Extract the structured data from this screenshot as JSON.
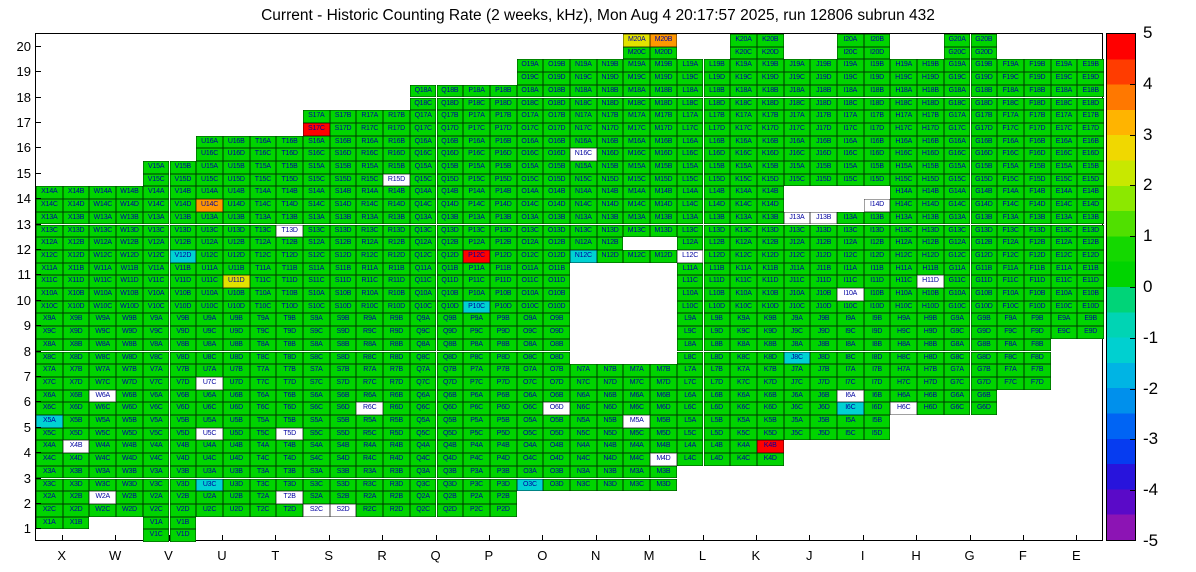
{
  "title": "Current - Historic Counting Rate (2 weeks, kHz), Mon Aug 4 20:17:57 2025, run 12806 subrun 432",
  "x_labels": [
    "X",
    "W",
    "V",
    "U",
    "T",
    "S",
    "R",
    "Q",
    "P",
    "O",
    "N",
    "M",
    "L",
    "K",
    "J",
    "I",
    "H",
    "G",
    "F",
    "E"
  ],
  "y_labels": [
    "20",
    "19",
    "18",
    "17",
    "16",
    "15",
    "14",
    "13",
    "12",
    "11",
    "10",
    "9",
    "8",
    "7",
    "6",
    "5",
    "4",
    "3",
    "2",
    "1"
  ],
  "cell_colors": {
    "g": "#00d400",
    "c": "#00d2d2",
    "y": "#e2e200",
    "o": "#ff9800",
    "r": "#ff0000",
    "w": "#ffffff"
  },
  "cell_text_color": "#0000a0",
  "colorbar": {
    "min": -5,
    "max": 5,
    "ticks": [
      "5",
      "4",
      "3",
      "2",
      "1",
      "0",
      "-1",
      "-2",
      "-3",
      "-4",
      "-5"
    ],
    "palette_top_to_bottom": [
      "#ff0000",
      "#ff3c00",
      "#ff7800",
      "#ffb400",
      "#f0d800",
      "#c8e800",
      "#8ce800",
      "#50e000",
      "#14d800",
      "#00d400",
      "#00d478",
      "#00d4b4",
      "#00d0d0",
      "#00b4e4",
      "#0090ec",
      "#0064f4",
      "#063cf0",
      "#2814dc",
      "#5a0ac8",
      "#8c14b4"
    ]
  },
  "chart_data": {
    "type": "heatmap",
    "title": "Current - Historic Counting Rate (2 weeks, kHz), Mon Aug 4 20:17:57 2025, run 12806 subrun 432",
    "x_categories": [
      "X",
      "W",
      "V",
      "U",
      "T",
      "S",
      "R",
      "Q",
      "P",
      "O",
      "N",
      "M",
      "L",
      "K",
      "J",
      "I",
      "H",
      "G",
      "F",
      "E"
    ],
    "y_range": [
      1,
      20
    ],
    "value_range": [
      -5,
      5
    ],
    "legend_position": "right-colorbar",
    "sub_cells": [
      "A",
      "B",
      "C",
      "D"
    ],
    "code_meaning": {
      "g": "green, approx +0.5",
      "c": "cyan, approx -1.5",
      "y": "yellow, approx +2.5",
      "o": "orange, approx +3.5",
      "r": "red, approx +5",
      "w": "white cell with label (no rate / minimum)",
      ".": "channel absent"
    },
    "rows": [
      {
        "y": 20,
        "cols": {
          "M": "yogg",
          "K": "gggg",
          "I": "gggg",
          "G": "gggg"
        }
      },
      {
        "y": 19,
        "cols": {
          "O": "gggg",
          "N": "gggg",
          "M": "gggg",
          "L": "gggg",
          "K": "gggg",
          "J": "gggg",
          "I": "gggg",
          "H": "gggg",
          "G": "gggg",
          "F": "gggg",
          "E": "gggg"
        }
      },
      {
        "y": 18,
        "cols": {
          "Q": "gggg",
          "P": "gggg",
          "O": "gggg",
          "N": "gggg",
          "M": "gggg",
          "L": "gggg",
          "K": "gggg",
          "J": "gggg",
          "I": "gggg",
          "H": "gggg",
          "G": "gggg",
          "F": "gggg",
          "E": "gggg"
        }
      },
      {
        "y": 17,
        "cols": {
          "S": "ggrg",
          "R": "gggg",
          "Q": "gggg",
          "P": "gggg",
          "O": "gggg",
          "N": "gggg",
          "M": "gggg",
          "L": "gggg",
          "K": "gggg",
          "J": "gggg",
          "I": "gggg",
          "H": "gggg",
          "G": "gggg",
          "F": "gggg",
          "E": "gggg"
        }
      },
      {
        "y": 16,
        "cols": {
          "U": "gggg",
          "T": "gggg",
          "S": "gggg",
          "R": "gggg",
          "Q": "gggg",
          "P": "gggg",
          "O": "gggg",
          "N": "ggwg",
          "M": "gggg",
          "L": "gggg",
          "K": "gggg",
          "J": "gggg",
          "I": "gggg",
          "H": "gggg",
          "G": "gggg",
          "F": "gggg",
          "E": "gggg"
        }
      },
      {
        "y": 15,
        "cols": {
          "V": "gggg",
          "U": "gggg",
          "T": "gggg",
          "S": "gggg",
          "R": "gggw",
          "Q": "gggg",
          "P": "gggg",
          "O": "gggg",
          "N": "gggg",
          "M": "gggg",
          "L": "gggg",
          "K": "gggg",
          "J": "gggg",
          "I": "gggg",
          "H": "gggg",
          "G": "gggg",
          "F": "gggg",
          "E": "gggg"
        }
      },
      {
        "y": 14,
        "cols": {
          "X": "gggg",
          "W": "gggg",
          "V": "gggg",
          "U": "ggog",
          "T": "gggg",
          "S": "gggg",
          "R": "gggg",
          "Q": "gggg",
          "P": "gggg",
          "O": "gggg",
          "N": "gggg",
          "M": "gggg",
          "L": "gggg",
          "K": "gggg",
          "I": "...w",
          "H": "gggg",
          "G": "gggg",
          "F": "gggg",
          "E": "gggg"
        }
      },
      {
        "y": 13,
        "cols": {
          "X": "gggg",
          "W": "gggg",
          "V": "gggg",
          "U": "gggg",
          "T": "gggw",
          "S": "gggg",
          "R": "gggg",
          "Q": "gggg",
          "P": "gggg",
          "O": "gggg",
          "N": "gggg",
          "M": "gggg",
          "L": "gggg",
          "K": "gggg",
          "J": "wwgg",
          "I": "gggg",
          "H": "gggg",
          "G": "gggg",
          "F": "gggg",
          "E": "gggg"
        }
      },
      {
        "y": 12,
        "cols": {
          "X": "gggg",
          "W": "gggg",
          "V": "gggc",
          "U": "gggg",
          "T": "gggg",
          "S": "gggg",
          "R": "gggg",
          "Q": "gggg",
          "P": "ggrg",
          "O": "gggg",
          "N": "ggcg",
          "M": "..gg",
          "L": "ggwg",
          "K": "gggg",
          "J": "gggg",
          "I": "gggg",
          "H": "gggg",
          "G": "gggg",
          "F": "gggg",
          "E": "gggg"
        }
      },
      {
        "y": 11,
        "cols": {
          "X": "gggg",
          "W": "gggg",
          "V": "gggg",
          "U": "gggy",
          "T": "gggg",
          "S": "gggg",
          "R": "gggg",
          "Q": "gggg",
          "P": "gggg",
          "O": "gggg",
          "L": "gggg",
          "K": "gggg",
          "J": "gggg",
          "I": "gggg",
          "H": "gggw",
          "G": "gggg",
          "F": "gggg",
          "E": "gggg"
        }
      },
      {
        "y": 10,
        "cols": {
          "X": "gggg",
          "W": "gggg",
          "V": "gggg",
          "U": "gggg",
          "T": "gggg",
          "S": "gggg",
          "R": "gggg",
          "Q": "gggg",
          "P": "ggcg",
          "O": "gggg",
          "L": "gggg",
          "K": "gggg",
          "J": "gggg",
          "I": "wggg",
          "H": "gggg",
          "G": "gggg",
          "F": "gggg",
          "E": "gggg"
        }
      },
      {
        "y": 9,
        "cols": {
          "X": "gggg",
          "W": "gggg",
          "V": "gggg",
          "U": "gggg",
          "T": "gggg",
          "S": "gggg",
          "R": "gggg",
          "Q": "gggg",
          "P": "gggg",
          "O": "gggg",
          "L": "gggg",
          "K": "gggg",
          "J": "gggg",
          "I": "gggg",
          "H": "gggg",
          "G": "gggg",
          "F": "gggg",
          "E": "gggg"
        }
      },
      {
        "y": 8,
        "cols": {
          "X": "gggg",
          "W": "gggg",
          "V": "gggg",
          "U": "gggg",
          "T": "gggg",
          "S": "gggg",
          "R": "gggg",
          "Q": "gggg",
          "P": "gggg",
          "O": "gggg",
          "L": "gggg",
          "K": "gggg",
          "J": "ggcg",
          "I": "gggg",
          "H": "gggg",
          "G": "gggg",
          "F": "gggg"
        }
      },
      {
        "y": 7,
        "cols": {
          "X": "gggg",
          "W": "gggg",
          "V": "gggg",
          "U": "ggwg",
          "T": "gggg",
          "S": "gggg",
          "R": "gggg",
          "Q": "gggg",
          "P": "gggg",
          "O": "gggg",
          "N": "gggg",
          "M": "gggg",
          "L": "gggg",
          "K": "gggg",
          "J": "gggg",
          "I": "gggg",
          "H": "gggg",
          "G": "gggg",
          "F": "gggg"
        }
      },
      {
        "y": 6,
        "cols": {
          "X": "gggg",
          "W": "wggg",
          "V": "gggg",
          "U": "gggg",
          "T": "gggg",
          "S": "gggg",
          "R": "ggwg",
          "Q": "gggg",
          "P": "gggg",
          "O": "gggw",
          "N": "gggg",
          "M": "gggg",
          "L": "gggg",
          "K": "gggg",
          "J": "gggg",
          "I": "wgcg",
          "H": "ggwg",
          "G": "gggg"
        }
      },
      {
        "y": 5,
        "cols": {
          "X": "cggg",
          "W": "gggg",
          "V": "gggg",
          "U": "ggwg",
          "T": "gggw",
          "S": "gggg",
          "R": "gggg",
          "Q": "gggg",
          "P": "gggg",
          "O": "gggg",
          "N": "gggg",
          "M": "wggg",
          "L": "gggg",
          "K": "gggg",
          "J": "gggg",
          "I": "gggg"
        }
      },
      {
        "y": 4,
        "cols": {
          "X": "gwgg",
          "W": "gggg",
          "V": "gggg",
          "U": "gggg",
          "T": "gggg",
          "S": "gggg",
          "R": "gggg",
          "Q": "gggg",
          "P": "gggg",
          "O": "gggg",
          "N": "gggg",
          "M": "gggw",
          "L": "gggg",
          "K": "grgg"
        }
      },
      {
        "y": 3,
        "cols": {
          "X": "gggg",
          "W": "gggg",
          "V": "gggg",
          "U": "ggcg",
          "T": "gggg",
          "S": "gggg",
          "R": "gggg",
          "Q": "gggg",
          "P": "gggg",
          "O": "ggcg",
          "N": "gggg",
          "M": "gggg"
        }
      },
      {
        "y": 2,
        "cols": {
          "X": "gggg",
          "W": "wggg",
          "V": "gggg",
          "U": "gggg",
          "T": "gwgg",
          "S": "ggww",
          "R": "gggg",
          "Q": "gggg",
          "P": "gggg"
        }
      },
      {
        "y": 1,
        "cols": {
          "X": "gg..",
          "V": "gggg"
        }
      }
    ]
  }
}
